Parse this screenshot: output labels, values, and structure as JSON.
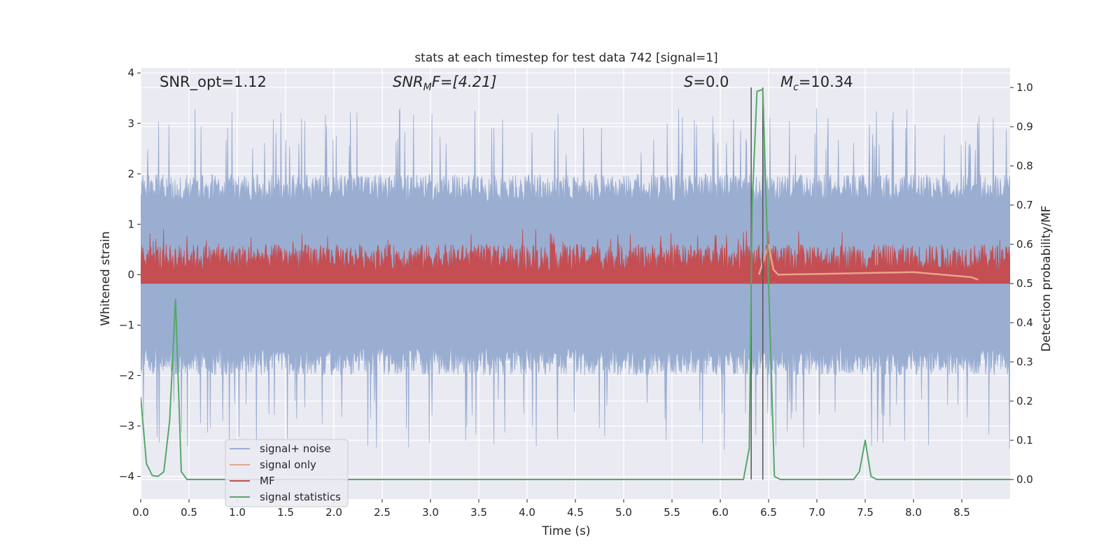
{
  "chart_data": {
    "type": "line",
    "title": "stats at each timestep for test data 742 [signal=1]",
    "xlabel": "Time (s)",
    "ylabel_left": "Whitened strain",
    "ylabel_right": "Detection probability/MF",
    "xlim": [
      0.0,
      9.0
    ],
    "ylim_left": [
      -4.45,
      4.1
    ],
    "ylim_right": [
      -0.05,
      1.05
    ],
    "x_ticks": [
      "0.0",
      "0.5",
      "1.0",
      "1.5",
      "2.0",
      "2.5",
      "3.0",
      "3.5",
      "4.0",
      "4.5",
      "5.0",
      "5.5",
      "6.0",
      "6.5",
      "7.0",
      "7.5",
      "8.0",
      "8.5"
    ],
    "y_ticks_left": [
      "4",
      "3",
      "2",
      "1",
      "0",
      "−1",
      "−2",
      "−3",
      "−4"
    ],
    "y_ticks_right": [
      "1.0",
      "0.9",
      "0.8",
      "0.7",
      "0.6",
      "0.5",
      "0.4",
      "0.3",
      "0.2",
      "0.1",
      "0.0"
    ],
    "grid": true,
    "legend_position": "lower-left",
    "annotations": {
      "snr_opt": "SNR_opt=1.12",
      "snr_mf_base": "SNR",
      "snr_mf_sub": "M",
      "snr_mf_rest": "F=[4.21]",
      "s_var": "S",
      "s_rest": "=0.0",
      "mc_var": "M",
      "mc_sub": "c",
      "mc_rest": "=10.34"
    },
    "vertical_markers_s": [
      6.32,
      6.44
    ],
    "series": [
      {
        "name": "signal+ noise",
        "color": "#9aaed2",
        "axis": "left",
        "description_values": {
          "typical_upper": 1.9,
          "typical_lower": -1.9,
          "peak_max": 3.3,
          "peak_min": -3.5
        }
      },
      {
        "name": "signal only",
        "color": "#e8a58c",
        "axis": "left",
        "x": [
          6.4,
          6.5,
          6.55,
          6.6,
          8.0,
          8.3,
          8.6,
          8.67
        ],
        "y": [
          0.0,
          0.6,
          0.1,
          0.0,
          0.05,
          0.0,
          -0.05,
          -0.1
        ]
      },
      {
        "name": "MF",
        "color": "#c44e52",
        "axis": "right",
        "description_values": {
          "baseline": 0.5,
          "typical_top": 0.6,
          "peak_max": 0.64
        }
      },
      {
        "name": "signal statistics",
        "color": "#55a868",
        "axis": "right",
        "x": [
          0.0,
          0.06,
          0.12,
          0.18,
          0.24,
          0.3,
          0.36,
          0.42,
          0.48,
          0.54,
          6.24,
          6.3,
          6.33,
          6.38,
          6.44,
          6.5,
          6.56,
          6.62,
          7.38,
          7.44,
          7.5,
          7.56,
          7.62,
          9.0
        ],
        "y": [
          0.21,
          0.04,
          0.01,
          0.008,
          0.02,
          0.15,
          0.46,
          0.02,
          0.0,
          0.0,
          0.0,
          0.08,
          0.7,
          0.99,
          0.995,
          0.5,
          0.008,
          0.0,
          0.0,
          0.02,
          0.1,
          0.008,
          0.0,
          0.0
        ]
      }
    ]
  }
}
